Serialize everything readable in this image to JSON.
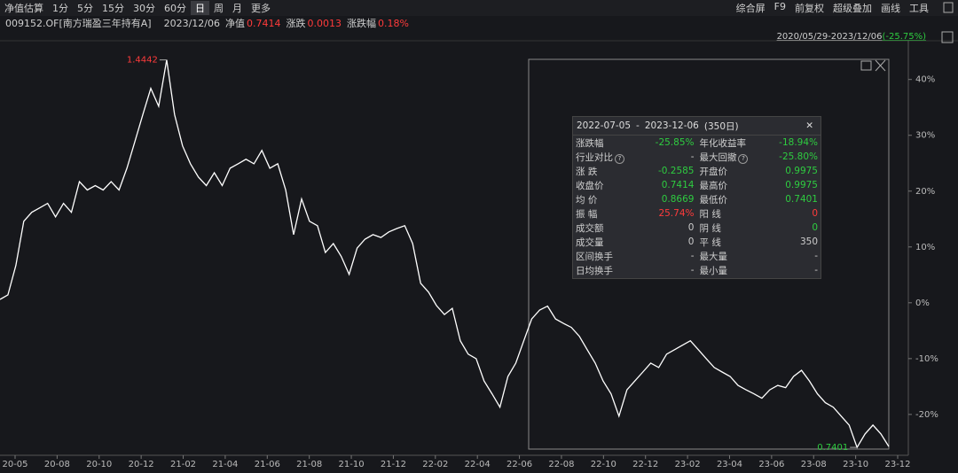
{
  "toolbar": {
    "left": [
      "净值估算",
      "1分",
      "5分",
      "15分",
      "30分",
      "60分",
      "日",
      "周",
      "月",
      "更多"
    ],
    "active": "日",
    "right": [
      "综合屏",
      "F9",
      "前复权",
      "超级叠加",
      "画线",
      "工具"
    ]
  },
  "info": {
    "code": "009152.OF[南方瑞盈三年持有A]",
    "date": "2023/12/06",
    "nav_label": "净值",
    "nav": "0.7414",
    "change_label": "涨跌",
    "change": "0.0013",
    "pct_label": "涨跌幅",
    "pct": "0.18%"
  },
  "range": {
    "text": "2020/05/29-2023/12/06",
    "change": "(-25.75%)"
  },
  "chart_data": {
    "type": "line",
    "color": "#ffffff",
    "values": [
      0.6,
      1.4,
      6.7,
      14.6,
      16.2,
      17.0,
      17.8,
      15.4,
      17.8,
      16.2,
      21.7,
      20.2,
      21.0,
      20.2,
      21.7,
      20.2,
      24.1,
      28.9,
      33.7,
      38.4,
      35.2,
      43.5,
      33.7,
      28.1,
      24.9,
      22.5,
      21.0,
      23.3,
      21.0,
      24.1,
      24.9,
      25.7,
      24.9,
      27.3,
      24.1,
      24.9,
      20.2,
      12.2,
      18.6,
      14.6,
      13.8,
      9.0,
      10.6,
      8.3,
      5.1,
      9.8,
      11.4,
      12.2,
      11.7,
      12.7,
      13.3,
      13.8,
      10.6,
      3.5,
      1.9,
      -0.5,
      -2.1,
      -1.0,
      -6.8,
      -9.2,
      -10.0,
      -14.0,
      -16.3,
      -18.7,
      -13.2,
      -10.8,
      -6.8,
      -2.9,
      -1.3,
      -0.6,
      -2.9,
      -3.7,
      -4.4,
      -6.0,
      -8.4,
      -10.8,
      -14.0,
      -16.3,
      -20.3,
      -15.6,
      -14.0,
      -12.4,
      -10.8,
      -11.6,
      -9.2,
      -8.4,
      -7.6,
      -6.8,
      -8.4,
      -10.0,
      -11.6,
      -12.4,
      -13.2,
      -14.8,
      -15.6,
      -16.3,
      -17.1,
      -15.6,
      -14.8,
      -15.2,
      -13.2,
      -12.1,
      -14.0,
      -16.3,
      -17.9,
      -18.7,
      -20.3,
      -21.9,
      -25.9,
      -23.5,
      -21.9,
      -23.5,
      -25.75
    ],
    "ylim": [
      -27,
      46.3
    ],
    "yticks": [
      {
        "value": 40,
        "label": "40%"
      },
      {
        "value": 30,
        "label": "30%"
      },
      {
        "value": 20,
        "label": "20%"
      },
      {
        "value": 10,
        "label": "10%"
      },
      {
        "value": 0,
        "label": "0%"
      },
      {
        "value": -10,
        "label": "-10%"
      },
      {
        "value": -20,
        "label": "-20%"
      }
    ],
    "x_labels": [
      "20-05",
      "20-08",
      "20-10",
      "20-12",
      "21-02",
      "21-04",
      "21-06",
      "21-08",
      "21-10",
      "21-12",
      "22-02",
      "22-04",
      "22-06",
      "22-08",
      "22-10",
      "22-12",
      "23-02",
      "23-04",
      "23-06",
      "23-08",
      "23-10",
      "23-12"
    ],
    "annotations": {
      "max_label": "1.4442",
      "min_label": "0.7401"
    }
  },
  "panel": {
    "start": "2022-07-05",
    "sep": "-",
    "end": "2023-12-06",
    "days": "(350日)",
    "rows": [
      [
        {
          "label": "涨跌幅",
          "value": "-25.85%",
          "color": "#2ecc40"
        },
        {
          "label": "年化收益率",
          "value": "-18.94%",
          "color": "#2ecc40"
        }
      ],
      [
        {
          "label": "行业对比",
          "help": true,
          "value": "-",
          "color": "#cccccc"
        },
        {
          "label": "最大回撤",
          "help": true,
          "value": "-25.80%",
          "color": "#2ecc40"
        }
      ],
      [
        {
          "label": "涨 跌",
          "value": "-0.2585",
          "color": "#2ecc40"
        },
        {
          "label": "开盘价",
          "value": "0.9975",
          "color": "#2ecc40"
        }
      ],
      [
        {
          "label": "收盘价",
          "value": "0.7414",
          "color": "#2ecc40"
        },
        {
          "label": "最高价",
          "value": "0.9975",
          "color": "#2ecc40"
        }
      ],
      [
        {
          "label": "均 价",
          "value": "0.8669",
          "color": "#2ecc40"
        },
        {
          "label": "最低价",
          "value": "0.7401",
          "color": "#2ecc40"
        }
      ],
      [
        {
          "label": "振 幅",
          "value": "25.74%",
          "color": "#ff3b3b"
        },
        {
          "label": "阳 线",
          "value": "0",
          "color": "#ff3b3b"
        }
      ],
      [
        {
          "label": "成交额",
          "value": "0",
          "color": "#cccccc"
        },
        {
          "label": "阴 线",
          "value": "0",
          "color": "#2ecc40"
        }
      ],
      [
        {
          "label": "成交量",
          "value": "0",
          "color": "#cccccc"
        },
        {
          "label": "平 线",
          "value": "350",
          "color": "#cccccc"
        }
      ],
      [
        {
          "label": "区间换手",
          "value": "-",
          "color": "#cccccc"
        },
        {
          "label": "最大量",
          "value": "-",
          "color": "#cccccc"
        }
      ],
      [
        {
          "label": "日均换手",
          "value": "-",
          "color": "#cccccc"
        },
        {
          "label": "最小量",
          "value": "-",
          "color": "#cccccc"
        }
      ]
    ]
  }
}
